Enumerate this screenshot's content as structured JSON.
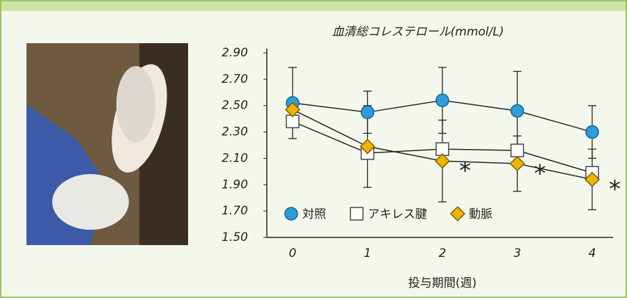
{
  "chart_data": {
    "type": "line",
    "title": "血清総コレステロール(mmol/L)",
    "x_label": "投与期間(週)",
    "categories": [
      "0",
      "1",
      "2",
      "3",
      "4"
    ],
    "ylim": [
      1.5,
      2.9
    ],
    "yticks": [
      {
        "value": 1.5,
        "label": "1.50"
      },
      {
        "value": 1.7,
        "label": "1.70"
      },
      {
        "value": 1.9,
        "label": "1.90"
      },
      {
        "value": 2.1,
        "label": "2.10"
      },
      {
        "value": 2.3,
        "label": "2.30"
      },
      {
        "value": 2.5,
        "label": "2.50"
      },
      {
        "value": 2.7,
        "label": "2.70"
      },
      {
        "value": 2.9,
        "label": "2.90"
      }
    ],
    "series": [
      {
        "name": "対照",
        "color": "#2a9fd8",
        "marker": "circle",
        "values": [
          2.52,
          2.45,
          2.54,
          2.46,
          2.3
        ],
        "errors": [
          0.27,
          0.16,
          0.25,
          0.3,
          0.2
        ]
      },
      {
        "name": "アキレス腱",
        "color": "#ffffff",
        "marker": "square",
        "values": [
          2.38,
          2.14,
          2.17,
          2.16,
          1.99
        ]
      },
      {
        "name": "動脈",
        "color": "#f0b400",
        "marker": "diamond",
        "values": [
          2.47,
          2.19,
          2.08,
          2.06,
          1.94
        ],
        "errors": [
          null,
          0.31,
          0.31,
          0.21,
          0.23
        ],
        "annotations": [
          null,
          null,
          "*",
          "*",
          "*"
        ]
      }
    ]
  }
}
